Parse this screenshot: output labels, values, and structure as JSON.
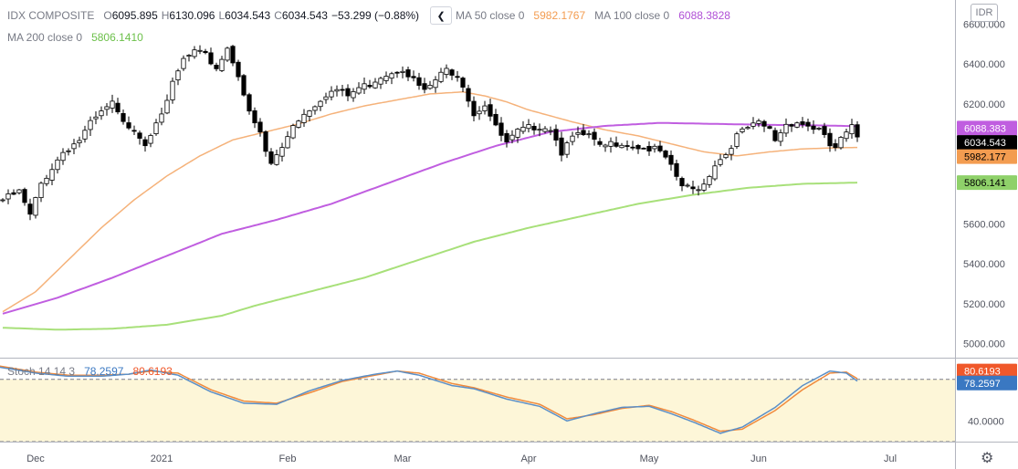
{
  "legend": {
    "symbol": "IDX COMPOSITE",
    "open_label": "O",
    "open": "6095.895",
    "high_label": "H",
    "high": "6130.096",
    "low_label": "L",
    "low": "6034.543",
    "close_label": "C",
    "close": "6034.543",
    "change": "−53.299 (−0.88%)",
    "nav_icon": "chevron-left-icon",
    "ma50_label": "MA 50 close 0",
    "ma50_value": "5982.1767",
    "ma100_label": "MA 100 close 0",
    "ma100_value": "6088.3828",
    "ma200_label": "MA 200 close 0",
    "ma200_value": "5806.1410",
    "stoch_label": "Stoch 14 14 3",
    "stoch_k": "78.2597",
    "stoch_d": "80.6193"
  },
  "currency_button": "IDR",
  "settings_icon": "gear-icon",
  "colors": {
    "ma50": "#f5b27a",
    "ma100": "#c05ee0",
    "ma200": "#a8e07a",
    "stoch_k": "#5b8fc7",
    "stoch_d": "#f08a3c",
    "stoch_band": "#fdf6d8",
    "close_badge": "#000000",
    "ma100_badge": "#c05ee0",
    "ma50_badge": "#f39c50",
    "ma200_badge": "#8fd16a",
    "stoch_d_badge": "#f0582a",
    "stoch_k_badge": "#3a78c2"
  },
  "axes": {
    "y_ticks": [
      "6600.000",
      "6400.000",
      "6200.000",
      "6000.000",
      "5800.000",
      "5600.000",
      "5400.000",
      "5200.000",
      "5000.000"
    ],
    "y_tick_values": [
      6600,
      6400,
      6200,
      6000,
      5800,
      5600,
      5400,
      5200,
      5000
    ],
    "x_ticks": [
      "Dec",
      "2021",
      "Feb",
      "Mar",
      "Apr",
      "May",
      "Jun",
      "Jul"
    ],
    "stoch_ticks": [
      "40.0000"
    ],
    "price_badges": {
      "ma100": "6088.383",
      "close": "6034.543",
      "ma50": "5982.177",
      "ma200": "5806.141"
    },
    "stoch_badges": {
      "d": "80.6193",
      "k": "78.2597"
    }
  },
  "chart_data": {
    "type": "candlestick",
    "title": "IDX COMPOSITE",
    "ylim": [
      4930,
      6720
    ],
    "x_tick_positions": {
      "Dec": 6,
      "2021": 29,
      "Feb": 52,
      "Mar": 73,
      "Apr": 96,
      "May": 118,
      "Jun": 138,
      "Jul": 162
    },
    "close_anchors": [
      [
        0,
        5720
      ],
      [
        3,
        5760
      ],
      [
        5,
        5640
      ],
      [
        7,
        5800
      ],
      [
        9,
        5880
      ],
      [
        11,
        5960
      ],
      [
        14,
        6020
      ],
      [
        16,
        6100
      ],
      [
        19,
        6180
      ],
      [
        20,
        6200
      ],
      [
        22,
        6100
      ],
      [
        24,
        6080
      ],
      [
        26,
        6000
      ],
      [
        28,
        6120
      ],
      [
        30,
        6200
      ],
      [
        31,
        6300
      ],
      [
        33,
        6420
      ],
      [
        35,
        6460
      ],
      [
        37,
        6440
      ],
      [
        39,
        6380
      ],
      [
        41,
        6480
      ],
      [
        43,
        6350
      ],
      [
        45,
        6150
      ],
      [
        47,
        6050
      ],
      [
        48,
        5960
      ],
      [
        49,
        5900
      ],
      [
        51,
        5980
      ],
      [
        53,
        6100
      ],
      [
        55,
        6150
      ],
      [
        57,
        6200
      ],
      [
        59,
        6250
      ],
      [
        61,
        6270
      ],
      [
        63,
        6240
      ],
      [
        65,
        6280
      ],
      [
        67,
        6300
      ],
      [
        69,
        6340
      ],
      [
        71,
        6360
      ],
      [
        73,
        6380
      ],
      [
        75,
        6320
      ],
      [
        77,
        6260
      ],
      [
        79,
        6320
      ],
      [
        81,
        6370
      ],
      [
        83,
        6350
      ],
      [
        84,
        6300
      ],
      [
        86,
        6150
      ],
      [
        88,
        6200
      ],
      [
        90,
        6080
      ],
      [
        92,
        6000
      ],
      [
        94,
        6060
      ],
      [
        96,
        6080
      ],
      [
        98,
        6090
      ],
      [
        100,
        6080
      ],
      [
        102,
        5960
      ],
      [
        103,
        6020
      ],
      [
        105,
        6040
      ],
      [
        107,
        6040
      ],
      [
        109,
        5980
      ],
      [
        111,
        6000
      ],
      [
        113,
        6010
      ],
      [
        115,
        5990
      ],
      [
        117,
        5980
      ],
      [
        119,
        5970
      ],
      [
        120,
        5960
      ],
      [
        122,
        5880
      ],
      [
        124,
        5790
      ],
      [
        126,
        5770
      ],
      [
        128,
        5800
      ],
      [
        130,
        5900
      ],
      [
        132,
        5950
      ],
      [
        134,
        6040
      ],
      [
        136,
        6080
      ],
      [
        138,
        6100
      ],
      [
        140,
        6070
      ],
      [
        141,
        6020
      ],
      [
        143,
        6100
      ],
      [
        145,
        6110
      ],
      [
        147,
        6090
      ],
      [
        149,
        6070
      ],
      [
        151,
        5990
      ],
      [
        152,
        5980
      ],
      [
        153,
        6020
      ],
      [
        155,
        6080
      ],
      [
        156,
        6034.543
      ]
    ],
    "ma50_anchors": [
      [
        0,
        5160
      ],
      [
        6,
        5260
      ],
      [
        12,
        5420
      ],
      [
        18,
        5580
      ],
      [
        24,
        5720
      ],
      [
        30,
        5840
      ],
      [
        36,
        5940
      ],
      [
        42,
        6020
      ],
      [
        48,
        6060
      ],
      [
        54,
        6100
      ],
      [
        60,
        6150
      ],
      [
        66,
        6190
      ],
      [
        72,
        6220
      ],
      [
        78,
        6250
      ],
      [
        84,
        6260
      ],
      [
        88,
        6240
      ],
      [
        92,
        6210
      ],
      [
        96,
        6170
      ],
      [
        100,
        6140
      ],
      [
        104,
        6110
      ],
      [
        110,
        6070
      ],
      [
        116,
        6040
      ],
      [
        122,
        6000
      ],
      [
        128,
        5960
      ],
      [
        134,
        5940
      ],
      [
        140,
        5960
      ],
      [
        146,
        5975
      ],
      [
        152,
        5980
      ],
      [
        156,
        5982.1767
      ]
    ],
    "ma100_anchors": [
      [
        0,
        5150
      ],
      [
        10,
        5230
      ],
      [
        20,
        5330
      ],
      [
        30,
        5440
      ],
      [
        40,
        5550
      ],
      [
        50,
        5620
      ],
      [
        60,
        5700
      ],
      [
        70,
        5800
      ],
      [
        80,
        5900
      ],
      [
        90,
        5990
      ],
      [
        100,
        6060
      ],
      [
        110,
        6090
      ],
      [
        120,
        6105
      ],
      [
        130,
        6100
      ],
      [
        140,
        6095
      ],
      [
        150,
        6092
      ],
      [
        156,
        6088.3828
      ]
    ],
    "ma200_anchors": [
      [
        0,
        5080
      ],
      [
        10,
        5070
      ],
      [
        20,
        5075
      ],
      [
        30,
        5095
      ],
      [
        40,
        5140
      ],
      [
        46,
        5190
      ],
      [
        56,
        5260
      ],
      [
        66,
        5330
      ],
      [
        76,
        5420
      ],
      [
        86,
        5510
      ],
      [
        96,
        5580
      ],
      [
        106,
        5640
      ],
      [
        116,
        5700
      ],
      [
        126,
        5745
      ],
      [
        136,
        5780
      ],
      [
        146,
        5800
      ],
      [
        156,
        5806.141
      ]
    ],
    "stoch_ylim": [
      20,
      100
    ],
    "stoch_k_anchors": [
      [
        -12,
        96
      ],
      [
        -2,
        93
      ],
      [
        6,
        86
      ],
      [
        12,
        83
      ],
      [
        18,
        83
      ],
      [
        23,
        85
      ],
      [
        27,
        89
      ],
      [
        32,
        84
      ],
      [
        38,
        68
      ],
      [
        44,
        57
      ],
      [
        50,
        56
      ],
      [
        56,
        69
      ],
      [
        62,
        79
      ],
      [
        68,
        85
      ],
      [
        72,
        88
      ],
      [
        76,
        84
      ],
      [
        82,
        74
      ],
      [
        86,
        71
      ],
      [
        92,
        61
      ],
      [
        98,
        54
      ],
      [
        103,
        40
      ],
      [
        108,
        47
      ],
      [
        113,
        53
      ],
      [
        118,
        54
      ],
      [
        122,
        47
      ],
      [
        126,
        39
      ],
      [
        131,
        28
      ],
      [
        135,
        34
      ],
      [
        141,
        53
      ],
      [
        146,
        74
      ],
      [
        151,
        88
      ],
      [
        154,
        86
      ],
      [
        156,
        78.2597
      ]
    ],
    "stoch_d_anchors": [
      [
        -12,
        94
      ],
      [
        -2,
        94
      ],
      [
        6,
        87
      ],
      [
        12,
        84
      ],
      [
        18,
        84
      ],
      [
        23,
        85
      ],
      [
        27,
        88
      ],
      [
        32,
        86
      ],
      [
        38,
        70
      ],
      [
        44,
        59
      ],
      [
        50,
        57
      ],
      [
        56,
        67
      ],
      [
        62,
        78
      ],
      [
        68,
        84
      ],
      [
        72,
        88
      ],
      [
        76,
        86
      ],
      [
        82,
        76
      ],
      [
        86,
        72
      ],
      [
        92,
        63
      ],
      [
        98,
        56
      ],
      [
        103,
        42
      ],
      [
        108,
        46
      ],
      [
        113,
        52
      ],
      [
        118,
        55
      ],
      [
        122,
        49
      ],
      [
        126,
        41
      ],
      [
        131,
        30
      ],
      [
        135,
        32
      ],
      [
        141,
        50
      ],
      [
        146,
        70
      ],
      [
        151,
        86
      ],
      [
        154,
        87
      ],
      [
        156,
        80.6193
      ]
    ]
  }
}
